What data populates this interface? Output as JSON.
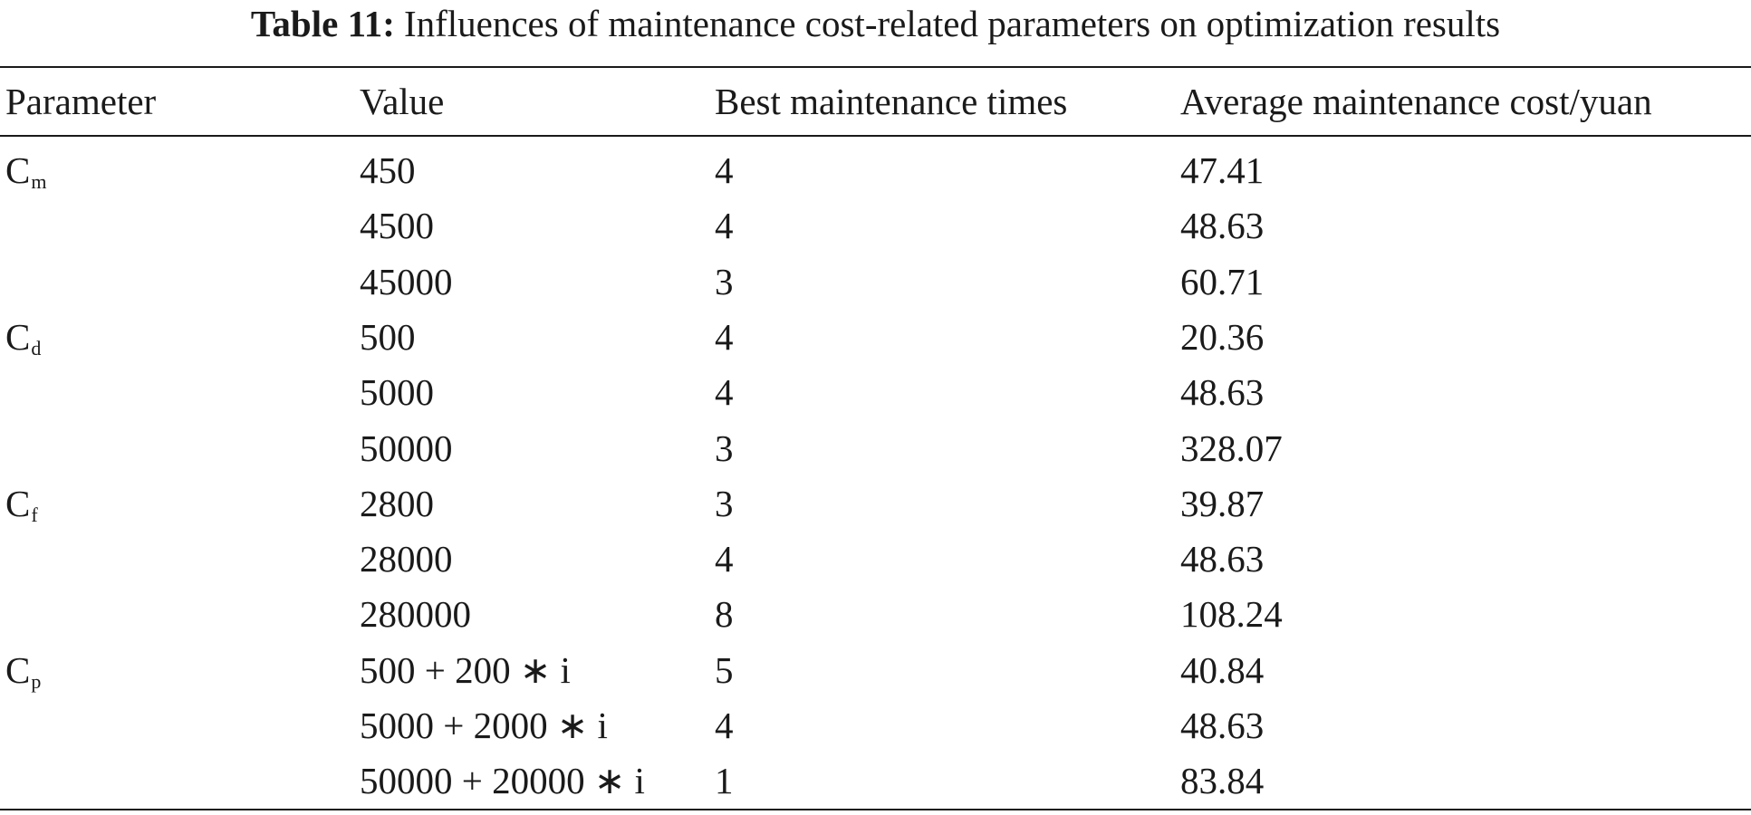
{
  "caption": {
    "label": "Table 11:",
    "text": "Influences of maintenance cost-related parameters on optimization results"
  },
  "table": {
    "header": [
      "Parameter",
      "Value",
      "Best maintenance times",
      "Average maintenance cost/yuan"
    ],
    "groups": [
      {
        "symbol": "C",
        "subscript": "m",
        "rows": [
          [
            "450",
            "4",
            "47.41"
          ],
          [
            "4500",
            "4",
            "48.63"
          ],
          [
            "45000",
            "3",
            "60.71"
          ]
        ]
      },
      {
        "symbol": "C",
        "subscript": "d",
        "rows": [
          [
            "500",
            "4",
            "20.36"
          ],
          [
            "5000",
            "4",
            "48.63"
          ],
          [
            "50000",
            "3",
            "328.07"
          ]
        ]
      },
      {
        "symbol": "C",
        "subscript": "f",
        "rows": [
          [
            "2800",
            "3",
            "39.87"
          ],
          [
            "28000",
            "4",
            "48.63"
          ],
          [
            "280000",
            "8",
            "108.24"
          ]
        ]
      },
      {
        "symbol": "C",
        "subscript": "p",
        "rows": [
          [
            "500 + 200 ∗ i",
            "5",
            "40.84"
          ],
          [
            "5000 + 2000 ∗ i",
            "4",
            "48.63"
          ],
          [
            "50000 + 20000 ∗ i",
            "1",
            "83.84"
          ]
        ]
      }
    ]
  }
}
